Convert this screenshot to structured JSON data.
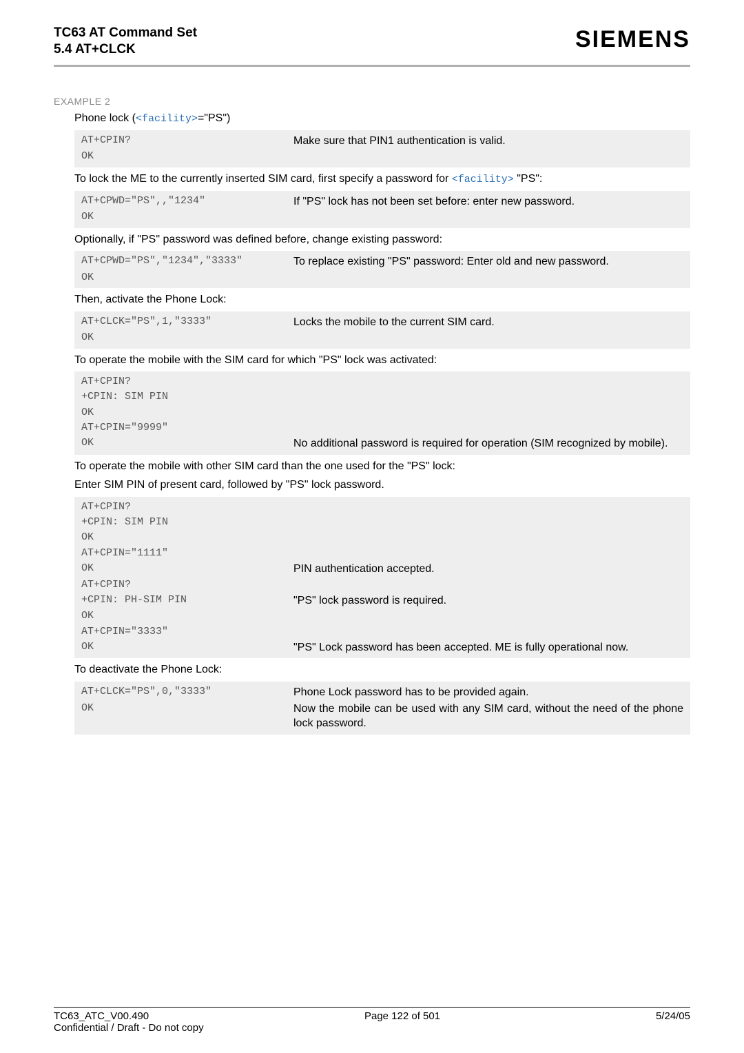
{
  "header": {
    "line1": "TC63 AT Command Set",
    "line2": "5.4 AT+CLCK",
    "brand": "SIEMENS"
  },
  "colors": {
    "facility": "#2a6fb5",
    "code_text": "#555555",
    "code_bg": "#eeeeee",
    "rule": "#b0b0b0",
    "muted": "#888888"
  },
  "example_label": "EXAMPLE 2",
  "intro": {
    "prefix": "Phone lock (",
    "facility": "<facility>",
    "suffix": "=\"PS\")"
  },
  "blocks": [
    {
      "type": "code",
      "rows": [
        {
          "left": "AT+CPIN?",
          "right": "Make sure that PIN1 authentication is valid."
        },
        {
          "left": "OK",
          "right": ""
        }
      ]
    },
    {
      "type": "narr_facility",
      "pre": "To lock the ME to the currently inserted SIM card, first specify a password for ",
      "facility": "<facility>",
      "post": " \"PS\":"
    },
    {
      "type": "code",
      "rows": [
        {
          "left": "AT+CPWD=\"PS\",,\"1234\"",
          "right": "If \"PS\" lock has not been set before: enter new password."
        },
        {
          "left": "OK",
          "right": ""
        }
      ]
    },
    {
      "type": "narr",
      "text": "Optionally, if \"PS\" password was defined before, change existing password:"
    },
    {
      "type": "code",
      "rows": [
        {
          "left": "AT+CPWD=\"PS\",\"1234\",\"3333\"",
          "right": "To replace existing \"PS\" password: Enter old and new password."
        },
        {
          "left": "OK",
          "right": ""
        }
      ]
    },
    {
      "type": "narr",
      "text": "Then, activate the Phone Lock:"
    },
    {
      "type": "code",
      "rows": [
        {
          "left": "AT+CLCK=\"PS\",1,\"3333\"",
          "right": "Locks the mobile to the current SIM card."
        },
        {
          "left": "OK",
          "right": ""
        }
      ]
    },
    {
      "type": "narr",
      "text": "To operate the mobile with the SIM card for which \"PS\" lock was activated:"
    },
    {
      "type": "code",
      "rows": [
        {
          "left": "AT+CPIN?",
          "right": ""
        },
        {
          "left": "+CPIN: SIM PIN",
          "right": ""
        },
        {
          "left": "OK",
          "right": ""
        },
        {
          "left": "AT+CPIN=\"9999\"",
          "right": ""
        },
        {
          "left": "OK",
          "right": "No additional password is required for operation (SIM recognized by mobile)."
        }
      ]
    },
    {
      "type": "narr2",
      "line1": "To operate the mobile with other SIM card than the one used for the \"PS\" lock:",
      "line2": "Enter SIM PIN of present card, followed by \"PS\" lock password."
    },
    {
      "type": "code",
      "rows": [
        {
          "left": "AT+CPIN?",
          "right": ""
        },
        {
          "left": "+CPIN: SIM PIN",
          "right": ""
        },
        {
          "left": "OK",
          "right": ""
        },
        {
          "left": "AT+CPIN=\"1111\"",
          "right": ""
        },
        {
          "left": "OK",
          "right": "PIN authentication accepted."
        },
        {
          "left": "AT+CPIN?",
          "right": ""
        },
        {
          "left": "+CPIN: PH-SIM PIN",
          "right": "\"PS\" lock password is required."
        },
        {
          "left": "OK",
          "right": ""
        },
        {
          "left": "AT+CPIN=\"3333\"",
          "right": ""
        },
        {
          "left": "OK",
          "right": "\"PS\" Lock password has been accepted. ME is fully operational now."
        }
      ]
    },
    {
      "type": "narr",
      "text": "To deactivate the Phone Lock:"
    },
    {
      "type": "code",
      "rows": [
        {
          "left": "AT+CLCK=\"PS\",0,\"3333\"",
          "right": "Phone Lock password has to be provided again."
        },
        {
          "left": "OK",
          "right": "Now the mobile can be used with any SIM card, without the need of the phone lock password."
        }
      ]
    }
  ],
  "footer": {
    "left1": "TC63_ATC_V00.490",
    "center": "Page 122 of 501",
    "right": "5/24/05",
    "left2": "Confidential / Draft - Do not copy"
  }
}
